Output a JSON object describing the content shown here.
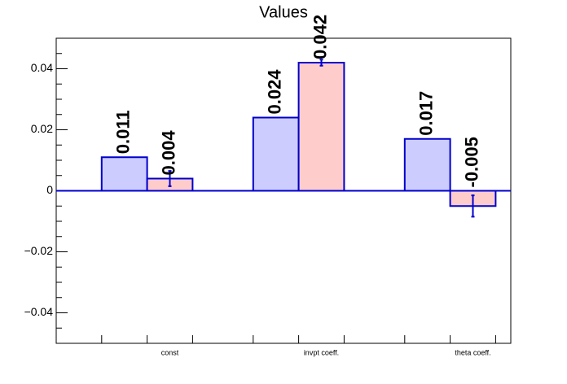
{
  "chart_data": {
    "type": "bar",
    "title": "Values",
    "categories": [
      "const",
      "invpt coeff.",
      "theta coeff."
    ],
    "series": [
      {
        "color": "#ccccff",
        "values": [
          0.011,
          0.024,
          0.017
        ]
      },
      {
        "color": "#ffcccc",
        "values": [
          0.004,
          0.042,
          -0.005
        ],
        "errors": [
          0.0025,
          0.001,
          0.0035
        ]
      }
    ],
    "edge_color": "#0000cc",
    "ylim": [
      -0.05,
      0.05
    ],
    "yticks": [
      {
        "value": -0.04,
        "label": "−0.04"
      },
      {
        "value": -0.02,
        "label": "−0.02"
      },
      0,
      0.02,
      0.04
    ]
  }
}
